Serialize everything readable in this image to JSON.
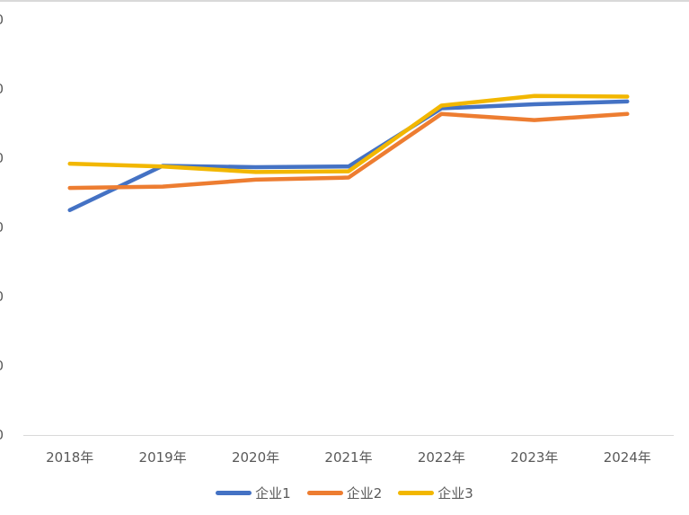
{
  "chart_data": {
    "type": "line",
    "categories": [
      "2018年",
      "2019年",
      "2020年",
      "2021年",
      "2022年",
      "2023年",
      "2024年"
    ],
    "y_tick_labels": [
      "0",
      "0",
      "0",
      "0",
      "0",
      "0",
      "0"
    ],
    "ylim": [
      0,
      6
    ],
    "grid": false,
    "legend_position": "bottom",
    "series": [
      {
        "name": "企业1",
        "color": "#4472C4",
        "values": [
          3.25,
          3.89,
          3.87,
          3.88,
          4.72,
          4.78,
          4.82
        ]
      },
      {
        "name": "企业2",
        "color": "#ED7D31",
        "values": [
          3.57,
          3.59,
          3.69,
          3.72,
          4.64,
          4.55,
          4.64
        ]
      },
      {
        "name": "企业3",
        "color": "#F2B700",
        "values": [
          3.92,
          3.88,
          3.8,
          3.81,
          4.76,
          4.9,
          4.89
        ]
      }
    ]
  }
}
